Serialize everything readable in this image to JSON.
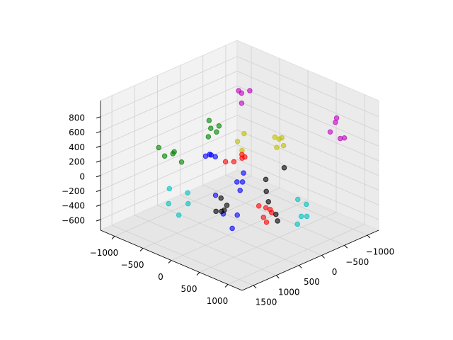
{
  "chart_data": {
    "type": "scatter3d",
    "xlim": [
      -1250,
      1250
    ],
    "ylim": [
      -1250,
      1750
    ],
    "zlim": [
      -745,
      1020
    ],
    "xticks": [
      {
        "value": -1000,
        "label": "−1000"
      },
      {
        "value": -500,
        "label": "−500"
      },
      0,
      500,
      1000
    ],
    "yticks": [
      {
        "value": -1000,
        "label": "−1000"
      },
      {
        "value": -500,
        "label": "−500"
      },
      0,
      500,
      1000,
      1500
    ],
    "zticks": [
      {
        "value": -600,
        "label": "−600"
      },
      {
        "value": -400,
        "label": "−400"
      },
      {
        "value": -200,
        "label": "−200"
      },
      0,
      200,
      400,
      600,
      800
    ],
    "grid": true,
    "series": [
      {
        "color": "#bf00bf",
        "x": [
          -475,
          -400,
          -375,
          -325,
          700,
          775,
          925,
          1150,
          1175
        ],
        "y": [
          -320,
          -290,
          -440,
          -200,
          -1010,
          -890,
          -590,
          -530,
          -590
        ],
        "z": [
          843,
          843,
          843,
          755,
          667,
          667,
          667,
          667,
          667
        ]
      },
      {
        "color": "#008000",
        "x": [
          -925,
          -725,
          -750,
          -625,
          -600,
          -825,
          -600,
          -575,
          -600,
          -325
        ],
        "y": [
          -230,
          -200,
          -50,
          -20,
          190,
          1000,
          940,
          1000,
          1150,
          1120
        ],
        "z": [
          314,
          314,
          314,
          314,
          314,
          314,
          314,
          314,
          314,
          314
        ]
      },
      {
        "color": "#bfbf00",
        "x": [
          -475,
          -375,
          -150,
          -125,
          -50,
          -50,
          125,
          100
        ],
        "y": [
          -440,
          -170,
          10,
          -680,
          -680,
          -740,
          -560,
          -440
        ],
        "z": [
          226,
          226,
          226,
          226,
          226,
          226,
          226,
          226
        ]
      },
      {
        "color": "#0000ff",
        "x": [
          -625,
          -625,
          -600,
          -525,
          -75,
          50,
          100,
          250,
          -400,
          200,
          50,
          425
        ],
        "y": [
          220,
          130,
          130,
          130,
          70,
          370,
          310,
          550,
          280,
          550,
          670,
          940
        ],
        "z": [
          50,
          50,
          50,
          50,
          -39,
          -39,
          -39,
          -39,
          -392,
          -392,
          -392,
          -392
        ]
      },
      {
        "color": "#ff0000",
        "x": [
          -200,
          -125,
          -125,
          -200,
          -125,
          75,
          175,
          250,
          325,
          350,
          475
        ],
        "y": [
          310,
          220,
          40,
          -50,
          -20,
          -80,
          -110,
          -110,
          -50,
          160,
          250
        ],
        "z": [
          138,
          138,
          138,
          138,
          138,
          -480,
          -480,
          -480,
          -480,
          -480,
          -480
        ]
      },
      {
        "color": "#000000",
        "x": [
          450,
          125,
          375,
          -425,
          -225,
          -200,
          -150,
          -150,
          75,
          550,
          400
        ],
        "y": [
          -170,
          -170,
          130,
          130,
          250,
          520,
          460,
          400,
          -290,
          100,
          -50
        ],
        "z": [
          138,
          -127,
          -127,
          -480,
          -480,
          -480,
          -480,
          -480,
          -480,
          -480,
          -480
        ]
      },
      {
        "color": "#00bfbf",
        "x": [
          -950,
          -700,
          -650,
          -475,
          -325,
          425,
          600,
          800,
          850,
          925
        ],
        "y": [
          610,
          520,
          1000,
          790,
          1180,
          -500,
          -470,
          -110,
          -170,
          130
        ],
        "z": [
          -392,
          -392,
          -392,
          -392,
          -392,
          -392,
          -392,
          -392,
          -392,
          -392
        ]
      }
    ]
  }
}
